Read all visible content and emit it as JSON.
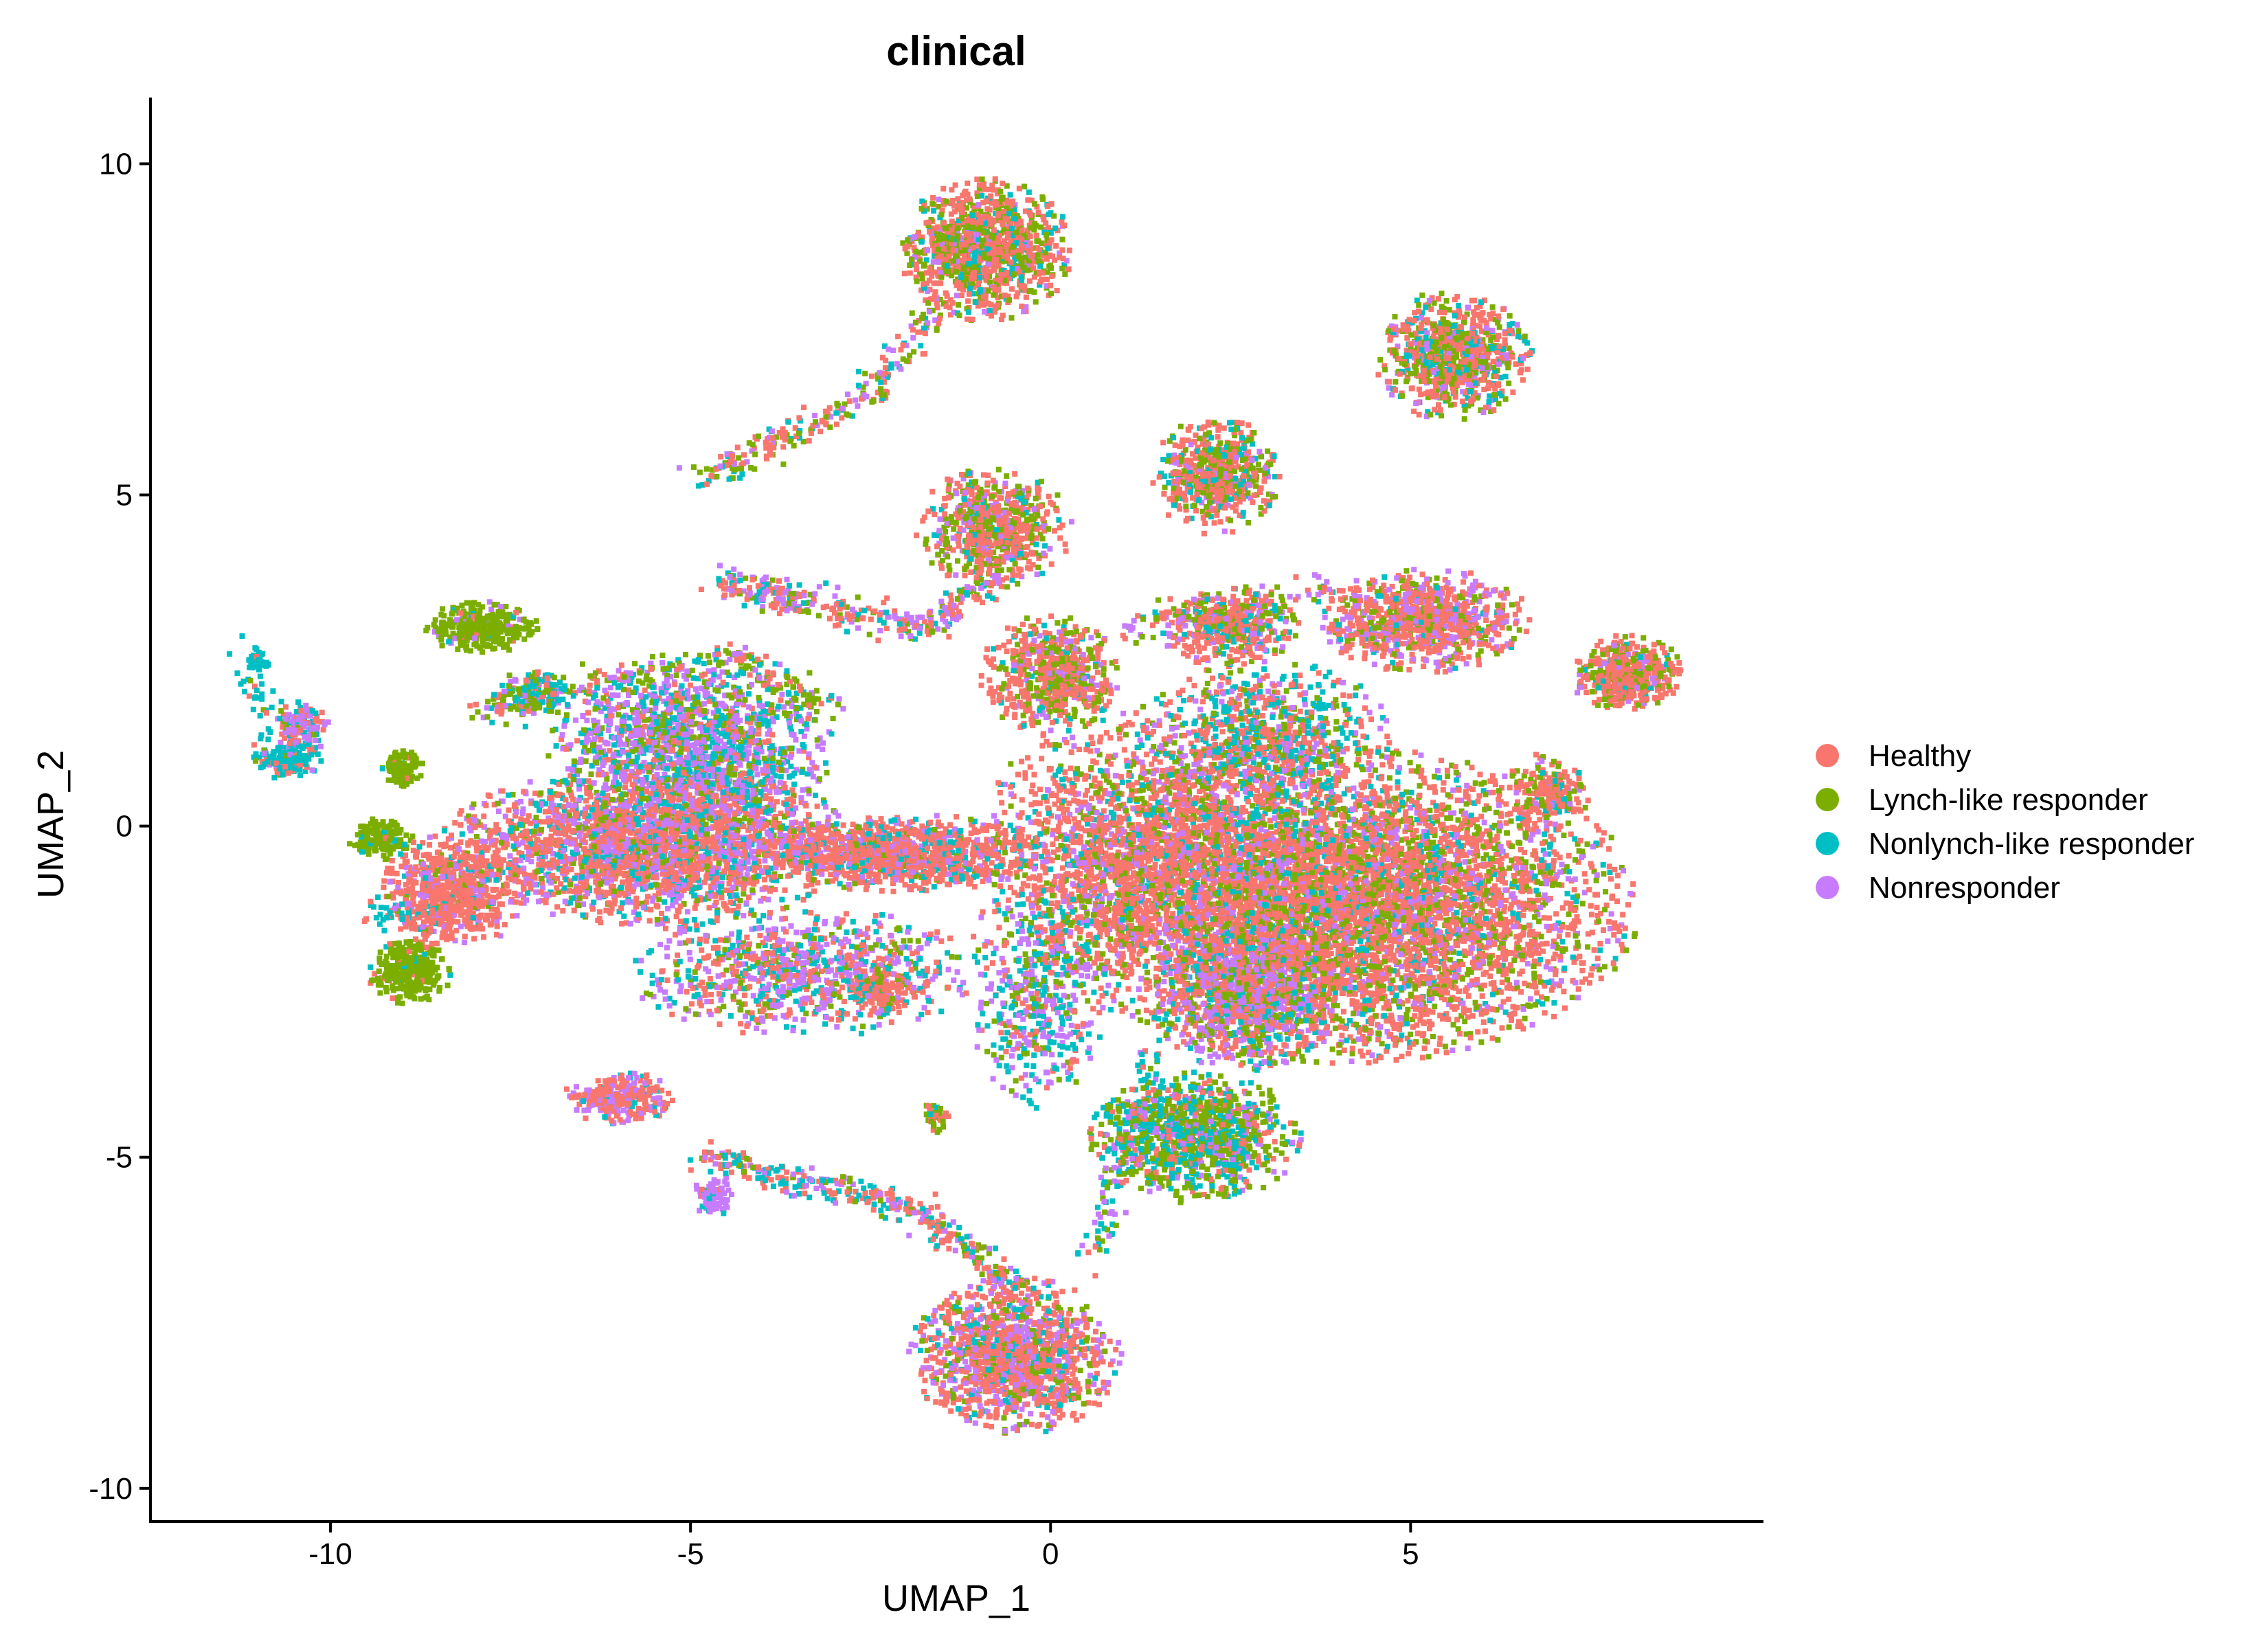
{
  "chart_data": {
    "type": "scatter",
    "title": "clinical",
    "xlabel": "UMAP_1",
    "ylabel": "UMAP_2",
    "xlim": [
      -12.5,
      9.9
    ],
    "ylim": [
      -10.5,
      11.0
    ],
    "x_ticks": [
      -10,
      -5,
      0,
      5
    ],
    "x_tick_labels": [
      "-10",
      "-5",
      "0",
      "5"
    ],
    "y_ticks": [
      -10,
      -5,
      0,
      5,
      10
    ],
    "y_tick_labels": [
      "-10",
      "-5",
      "0",
      "5",
      "10"
    ],
    "grid": false,
    "legend_position": "right",
    "series": [
      {
        "name": "Healthy",
        "color": "#F8766D"
      },
      {
        "name": "Lynch-like responder",
        "color": "#7CAE00"
      },
      {
        "name": "Nonlynch-like responder",
        "color": "#00BFC4"
      },
      {
        "name": "Nonresponder",
        "color": "#C77CFF"
      }
    ],
    "clusters": [
      {
        "cx": 4.0,
        "cy": -1.2,
        "rx": 4.2,
        "ry": 2.4,
        "n": 6500,
        "w": [
          0.55,
          0.22,
          0.1,
          0.13
        ]
      },
      {
        "cx": 2.7,
        "cy": -2.6,
        "rx": 1.3,
        "ry": 1.1,
        "n": 900,
        "w": [
          0.2,
          0.2,
          0.15,
          0.45
        ]
      },
      {
        "cx": 2.0,
        "cy": -4.7,
        "rx": 1.5,
        "ry": 1.0,
        "n": 1100,
        "w": [
          0.15,
          0.45,
          0.3,
          0.1
        ]
      },
      {
        "cx": 1.2,
        "cy": -0.3,
        "rx": 2.2,
        "ry": 2.2,
        "n": 1600,
        "w": [
          0.6,
          0.15,
          0.1,
          0.15
        ]
      },
      {
        "cx": 5.2,
        "cy": 3.1,
        "rx": 1.5,
        "ry": 0.8,
        "n": 900,
        "w": [
          0.55,
          0.15,
          0.05,
          0.25
        ]
      },
      {
        "cx": 3.0,
        "cy": 1.3,
        "rx": 1.8,
        "ry": 1.2,
        "n": 900,
        "w": [
          0.35,
          0.2,
          0.3,
          0.15
        ]
      },
      {
        "cx": 2.5,
        "cy": 3.0,
        "rx": 1.0,
        "ry": 0.6,
        "n": 450,
        "w": [
          0.5,
          0.2,
          0.15,
          0.15
        ]
      },
      {
        "cx": 8.0,
        "cy": 2.3,
        "rx": 0.8,
        "ry": 0.6,
        "n": 450,
        "w": [
          0.6,
          0.25,
          0.05,
          0.1
        ]
      },
      {
        "cx": 5.6,
        "cy": 7.1,
        "rx": 1.1,
        "ry": 1.0,
        "n": 800,
        "w": [
          0.45,
          0.3,
          0.15,
          0.1
        ]
      },
      {
        "cx": 2.3,
        "cy": 5.3,
        "rx": 0.9,
        "ry": 0.9,
        "n": 600,
        "w": [
          0.45,
          0.3,
          0.15,
          0.1
        ]
      },
      {
        "cx": -0.9,
        "cy": 8.7,
        "rx": 1.2,
        "ry": 1.1,
        "n": 1100,
        "w": [
          0.5,
          0.3,
          0.12,
          0.08
        ]
      },
      {
        "cx": -0.8,
        "cy": 4.5,
        "rx": 1.1,
        "ry": 0.9,
        "n": 700,
        "w": [
          0.5,
          0.3,
          0.1,
          0.1
        ]
      },
      {
        "cx": 0.0,
        "cy": 2.3,
        "rx": 1.0,
        "ry": 0.9,
        "n": 600,
        "w": [
          0.55,
          0.3,
          0.05,
          0.1
        ]
      },
      {
        "cx": -0.5,
        "cy": -8.0,
        "rx": 1.5,
        "ry": 1.2,
        "n": 1300,
        "w": [
          0.55,
          0.15,
          0.1,
          0.2
        ]
      },
      {
        "cx": -5.5,
        "cy": -0.3,
        "rx": 3.0,
        "ry": 1.2,
        "n": 2600,
        "w": [
          0.5,
          0.1,
          0.15,
          0.25
        ]
      },
      {
        "cx": -8.3,
        "cy": -1.0,
        "rx": 1.0,
        "ry": 0.9,
        "n": 700,
        "w": [
          0.8,
          0.05,
          0.05,
          0.1
        ]
      },
      {
        "cx": -5.0,
        "cy": 1.2,
        "rx": 2.0,
        "ry": 1.3,
        "n": 1500,
        "w": [
          0.1,
          0.2,
          0.3,
          0.4
        ]
      },
      {
        "cx": -2.0,
        "cy": -0.4,
        "rx": 2.0,
        "ry": 0.6,
        "n": 1100,
        "w": [
          0.65,
          0.05,
          0.15,
          0.15
        ]
      },
      {
        "cx": -3.5,
        "cy": -2.2,
        "rx": 2.5,
        "ry": 1.0,
        "n": 900,
        "w": [
          0.3,
          0.15,
          0.25,
          0.3
        ]
      },
      {
        "cx": -0.2,
        "cy": -2.5,
        "rx": 1.0,
        "ry": 1.8,
        "n": 500,
        "w": [
          0.2,
          0.2,
          0.3,
          0.3
        ]
      },
      {
        "cx": -7.9,
        "cy": 3.0,
        "rx": 0.8,
        "ry": 0.4,
        "n": 350,
        "w": [
          0.05,
          0.85,
          0.05,
          0.05
        ]
      },
      {
        "cx": -8.9,
        "cy": -2.2,
        "rx": 0.6,
        "ry": 0.5,
        "n": 300,
        "w": [
          0.05,
          0.9,
          0.05,
          0.0
        ]
      },
      {
        "cx": -9.3,
        "cy": -0.2,
        "rx": 0.45,
        "ry": 0.35,
        "n": 150,
        "w": [
          0.05,
          0.9,
          0.05,
          0.0
        ]
      },
      {
        "cx": -9.0,
        "cy": 0.9,
        "rx": 0.3,
        "ry": 0.3,
        "n": 100,
        "w": [
          0.05,
          0.9,
          0.05,
          0.0
        ]
      },
      {
        "cx": -10.6,
        "cy": 1.0,
        "rx": 0.5,
        "ry": 0.3,
        "n": 150,
        "w": [
          0.2,
          0.05,
          0.7,
          0.05
        ]
      },
      {
        "cx": -10.4,
        "cy": 1.5,
        "rx": 0.4,
        "ry": 0.4,
        "n": 120,
        "w": [
          0.4,
          0.05,
          0.15,
          0.4
        ]
      },
      {
        "cx": -11.0,
        "cy": 2.5,
        "rx": 0.2,
        "ry": 0.2,
        "n": 40,
        "w": [
          0.05,
          0.05,
          0.9,
          0.0
        ]
      },
      {
        "cx": -6.0,
        "cy": -4.1,
        "rx": 0.8,
        "ry": 0.4,
        "n": 300,
        "w": [
          0.6,
          0.0,
          0.1,
          0.3
        ]
      },
      {
        "cx": -4.7,
        "cy": -5.6,
        "rx": 0.3,
        "ry": 0.3,
        "n": 80,
        "w": [
          0.1,
          0.0,
          0.1,
          0.8
        ]
      },
      {
        "cx": -2.4,
        "cy": -2.5,
        "rx": 0.5,
        "ry": 0.4,
        "n": 150,
        "w": [
          0.8,
          0.1,
          0.05,
          0.05
        ]
      },
      {
        "cx": -1.6,
        "cy": -4.4,
        "rx": 0.2,
        "ry": 0.3,
        "n": 40,
        "w": [
          0.2,
          0.7,
          0.1,
          0.0
        ]
      },
      {
        "cx": -7.2,
        "cy": 2.0,
        "rx": 0.6,
        "ry": 0.4,
        "n": 150,
        "w": [
          0.1,
          0.3,
          0.4,
          0.2
        ]
      },
      {
        "cx": 6.9,
        "cy": 0.5,
        "rx": 0.6,
        "ry": 0.6,
        "n": 200,
        "w": [
          0.6,
          0.2,
          0.1,
          0.1
        ]
      }
    ],
    "strands": [
      {
        "from": [
          -4.9,
          5.2
        ],
        "to": [
          -2.4,
          6.6
        ],
        "n": 160,
        "w": [
          0.4,
          0.3,
          0.15,
          0.15
        ]
      },
      {
        "from": [
          -2.4,
          6.6
        ],
        "to": [
          -1.5,
          8.0
        ],
        "n": 80,
        "w": [
          0.4,
          0.3,
          0.15,
          0.15
        ]
      },
      {
        "from": [
          -4.6,
          3.7
        ],
        "to": [
          -1.8,
          3.0
        ],
        "n": 220,
        "w": [
          0.4,
          0.1,
          0.15,
          0.35
        ]
      },
      {
        "from": [
          -1.8,
          3.0
        ],
        "to": [
          -0.7,
          3.8
        ],
        "n": 100,
        "w": [
          0.4,
          0.1,
          0.15,
          0.35
        ]
      },
      {
        "from": [
          -4.8,
          -5.0
        ],
        "to": [
          -1.8,
          -5.8
        ],
        "n": 220,
        "w": [
          0.4,
          0.1,
          0.3,
          0.2
        ]
      },
      {
        "from": [
          -1.8,
          -5.8
        ],
        "to": [
          -0.5,
          -7.0
        ],
        "n": 150,
        "w": [
          0.5,
          0.15,
          0.15,
          0.2
        ]
      },
      {
        "from": [
          -8.0,
          1.7
        ],
        "to": [
          -4.5,
          2.6
        ],
        "n": 140,
        "w": [
          0.2,
          0.5,
          0.15,
          0.15
        ]
      },
      {
        "from": [
          -4.5,
          2.6
        ],
        "to": [
          -3.0,
          1.8
        ],
        "n": 100,
        "w": [
          0.3,
          0.4,
          0.15,
          0.15
        ]
      },
      {
        "from": [
          1.0,
          3.0
        ],
        "to": [
          4.0,
          3.6
        ],
        "n": 120,
        "w": [
          0.3,
          0.2,
          0.2,
          0.3
        ]
      },
      {
        "from": [
          1.4,
          -3.5
        ],
        "to": [
          0.6,
          -6.5
        ],
        "n": 120,
        "w": [
          0.2,
          0.2,
          0.4,
          0.2
        ]
      },
      {
        "from": [
          -11.2,
          2.7
        ],
        "to": [
          -10.8,
          1.2
        ],
        "n": 40,
        "w": [
          0.1,
          0.05,
          0.85,
          0.0
        ]
      },
      {
        "from": [
          -9.6,
          -1.3
        ],
        "to": [
          -8.6,
          -1.3
        ],
        "n": 40,
        "w": [
          0.2,
          0.1,
          0.7,
          0.0
        ]
      }
    ]
  }
}
